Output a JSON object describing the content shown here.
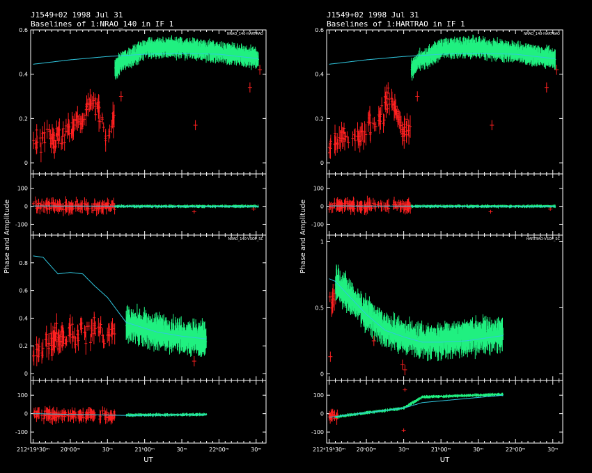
{
  "colors": {
    "background": "#000000",
    "frame": "#ffffff",
    "model": "#30c8e0",
    "flagged": "#ff2020",
    "good": "#20f080"
  },
  "figure": {
    "xlabel": "UT",
    "ylabel": "Phase and Amplitude"
  },
  "x_ticks": [
    {
      "v": 0,
      "label": "212ᵈ"
    },
    {
      "v": 30,
      "label": "20ʰ00ᵐ"
    },
    {
      "v": 60,
      "label": "30ᵐ"
    },
    {
      "v": 90,
      "label": "21ʰ00ᵐ"
    },
    {
      "v": 120,
      "label": "30ᵐ"
    },
    {
      "v": 150,
      "label": "22ʰ00ᵐ"
    },
    {
      "v": 180,
      "label": "30ᵐ"
    }
  ],
  "x_tick_start_prefix": "212ᵈ19ʰ30ᵐ",
  "chart_data": [
    {
      "type": "scatter",
      "title_line1": "J1549+02  1998 Jul 31",
      "title_line2": "Baselines of 1:NRAO_140 in IF 1",
      "xlabel": "UT",
      "ylabel": "Phase and Amplitude",
      "xlim_minutes_from_19h30": [
        -2,
        188
      ],
      "panels": [
        {
          "label": "NRAO_140-HARTRAO",
          "quantity": "amplitude",
          "ylim": [
            -0.05,
            0.6
          ],
          "yticks": [
            0,
            0.2,
            0.4,
            0.6
          ],
          "ytick_labels": [
            "0",
            "0.2",
            "0.4",
            "0.6"
          ],
          "flagged_range": [
            0,
            66
          ],
          "good_range": [
            66,
            182
          ],
          "model": [
            [
              0,
              0.445
            ],
            [
              30,
              0.465
            ],
            [
              60,
              0.48
            ],
            [
              90,
              0.49
            ],
            [
              120,
              0.495
            ],
            [
              150,
              0.49
            ],
            [
              182,
              0.47
            ]
          ],
          "good_level": [
            [
              66,
              0.42
            ],
            [
              72,
              0.46
            ],
            [
              80,
              0.48
            ],
            [
              92,
              0.52
            ],
            [
              120,
              0.52
            ],
            [
              150,
              0.5
            ],
            [
              182,
              0.47
            ]
          ],
          "flagged_level": [
            [
              0,
              0.08
            ],
            [
              10,
              0.12
            ],
            [
              20,
              0.1
            ],
            [
              30,
              0.14
            ],
            [
              40,
              0.2
            ],
            [
              48,
              0.3
            ],
            [
              55,
              0.22
            ],
            [
              60,
              0.12
            ],
            [
              66,
              0.2
            ]
          ],
          "outliers": [
            [
              71,
              0.3
            ],
            [
              131,
              0.17
            ],
            [
              175,
              0.34
            ],
            [
              183,
              0.42
            ]
          ]
        },
        {
          "label": "",
          "quantity": "phase",
          "ylim": [
            -160,
            180
          ],
          "yticks": [
            -100,
            0,
            100
          ],
          "ytick_labels": [
            "-100",
            "0",
            "100"
          ],
          "flagged_range": [
            0,
            66
          ],
          "good_range": [
            66,
            182
          ],
          "model": [
            [
              0,
              2
            ],
            [
              60,
              1
            ],
            [
              120,
              0
            ],
            [
              182,
              0
            ]
          ],
          "good_level": [
            [
              66,
              0
            ],
            [
              182,
              0
            ]
          ],
          "flagged_level": [
            [
              0,
              0
            ],
            [
              66,
              0
            ]
          ],
          "outliers": [
            [
              130,
              -30
            ],
            [
              178,
              -15
            ]
          ]
        },
        {
          "label": "NRAO_140-VSOP_SC",
          "quantity": "amplitude",
          "ylim": [
            -0.05,
            1.0
          ],
          "yticks": [
            0,
            0.2,
            0.4,
            0.6,
            0.8
          ],
          "ytick_labels": [
            "0",
            "0.2",
            "0.4",
            "0.6",
            "0.8"
          ],
          "flagged_range": [
            0,
            66
          ],
          "good_range": [
            75,
            140
          ],
          "model": [
            [
              0,
              0.85
            ],
            [
              8,
              0.84
            ],
            [
              20,
              0.72
            ],
            [
              30,
              0.73
            ],
            [
              40,
              0.72
            ],
            [
              50,
              0.63
            ],
            [
              60,
              0.55
            ],
            [
              75,
              0.37
            ],
            [
              100,
              0.3
            ],
            [
              120,
              0.27
            ],
            [
              140,
              0.25
            ]
          ],
          "good_level": [
            [
              75,
              0.36
            ],
            [
              100,
              0.3
            ],
            [
              120,
              0.27
            ],
            [
              140,
              0.25
            ]
          ],
          "flagged_level": [
            [
              0,
              0.15
            ],
            [
              10,
              0.2
            ],
            [
              20,
              0.25
            ],
            [
              30,
              0.28
            ],
            [
              40,
              0.3
            ],
            [
              50,
              0.32
            ],
            [
              60,
              0.25
            ],
            [
              66,
              0.3
            ]
          ],
          "outliers": [
            [
              130,
              0.09
            ]
          ]
        },
        {
          "label": "",
          "quantity": "phase",
          "ylim": [
            -160,
            180
          ],
          "yticks": [
            -100,
            0,
            100
          ],
          "ytick_labels": [
            "-100",
            "0",
            "100"
          ],
          "flagged_range": [
            0,
            66
          ],
          "good_range": [
            75,
            140
          ],
          "model": [
            [
              0,
              0
            ],
            [
              60,
              -8
            ],
            [
              80,
              -10
            ],
            [
              140,
              -5
            ]
          ],
          "good_level": [
            [
              75,
              -8
            ],
            [
              140,
              -5
            ]
          ],
          "flagged_level": [
            [
              0,
              -5
            ],
            [
              66,
              -15
            ]
          ],
          "outliers": []
        }
      ]
    },
    {
      "type": "scatter",
      "title_line1": "J1549+02  1998 Jul 31",
      "title_line2": "Baselines of 1:HARTRAO in IF 1",
      "xlabel": "UT",
      "ylabel": "Phase and Amplitude",
      "xlim_minutes_from_19h30": [
        -2,
        188
      ],
      "panels": [
        {
          "label": "NRAO_140-HARTRAO",
          "quantity": "amplitude",
          "ylim": [
            -0.05,
            0.6
          ],
          "yticks": [
            0,
            0.2,
            0.4,
            0.6
          ],
          "ytick_labels": [
            "0",
            "0.2",
            "0.4",
            "0.6"
          ],
          "flagged_range": [
            0,
            66
          ],
          "good_range": [
            66,
            182
          ],
          "model": [
            [
              0,
              0.445
            ],
            [
              30,
              0.465
            ],
            [
              60,
              0.48
            ],
            [
              90,
              0.49
            ],
            [
              120,
              0.495
            ],
            [
              150,
              0.49
            ],
            [
              182,
              0.47
            ]
          ],
          "good_level": [
            [
              66,
              0.42
            ],
            [
              72,
              0.46
            ],
            [
              80,
              0.48
            ],
            [
              92,
              0.52
            ],
            [
              120,
              0.52
            ],
            [
              150,
              0.5
            ],
            [
              182,
              0.47
            ]
          ],
          "flagged_level": [
            [
              0,
              0.08
            ],
            [
              10,
              0.12
            ],
            [
              20,
              0.1
            ],
            [
              30,
              0.14
            ],
            [
              40,
              0.2
            ],
            [
              48,
              0.3
            ],
            [
              55,
              0.22
            ],
            [
              60,
              0.12
            ],
            [
              66,
              0.2
            ]
          ],
          "outliers": [
            [
              71,
              0.3
            ],
            [
              131,
              0.17
            ],
            [
              175,
              0.34
            ],
            [
              183,
              0.42
            ]
          ]
        },
        {
          "label": "",
          "quantity": "phase",
          "ylim": [
            -160,
            180
          ],
          "yticks": [
            -100,
            0,
            100
          ],
          "ytick_labels": [
            "-100",
            "0",
            "100"
          ],
          "flagged_range": [
            0,
            66
          ],
          "good_range": [
            66,
            182
          ],
          "model": [
            [
              0,
              2
            ],
            [
              60,
              1
            ],
            [
              120,
              0
            ],
            [
              182,
              0
            ]
          ],
          "good_level": [
            [
              66,
              0
            ],
            [
              182,
              0
            ]
          ],
          "flagged_level": [
            [
              0,
              5
            ],
            [
              66,
              0
            ]
          ],
          "outliers": [
            [
              130,
              -30
            ],
            [
              178,
              -15
            ]
          ]
        },
        {
          "label": "HARTRAO-VSOP_SC",
          "quantity": "amplitude",
          "ylim": [
            -0.05,
            1.05
          ],
          "yticks": [
            0,
            0.5,
            1
          ],
          "ytick_labels": [
            "0",
            "0.5",
            "1"
          ],
          "flagged_range": [
            0,
            8
          ],
          "good_range": [
            5,
            140
          ],
          "model": [
            [
              0,
              0.72
            ],
            [
              5,
              0.7
            ],
            [
              15,
              0.6
            ],
            [
              30,
              0.45
            ],
            [
              45,
              0.33
            ],
            [
              60,
              0.28
            ],
            [
              75,
              0.24
            ],
            [
              90,
              0.24
            ],
            [
              110,
              0.25
            ],
            [
              125,
              0.27
            ],
            [
              140,
              0.29
            ]
          ],
          "good_level": [
            [
              5,
              0.7
            ],
            [
              15,
              0.6
            ],
            [
              30,
              0.45
            ],
            [
              45,
              0.33
            ],
            [
              60,
              0.28
            ],
            [
              70,
              0.25
            ],
            [
              90,
              0.25
            ],
            [
              110,
              0.28
            ],
            [
              140,
              0.3
            ]
          ],
          "flagged_level": [
            [
              0,
              0.5
            ],
            [
              8,
              0.7
            ]
          ],
          "outliers": [
            [
              1,
              0.13
            ],
            [
              59,
              0.07
            ],
            [
              61,
              0.03
            ],
            [
              36,
              0.25
            ]
          ]
        },
        {
          "label": "",
          "quantity": "phase",
          "ylim": [
            -160,
            180
          ],
          "yticks": [
            -100,
            0,
            100
          ],
          "ytick_labels": [
            "-100",
            "0",
            "100"
          ],
          "flagged_range": [
            0,
            8
          ],
          "good_range": [
            5,
            140
          ],
          "model": [
            [
              0,
              -20
            ],
            [
              30,
              5
            ],
            [
              60,
              30
            ],
            [
              75,
              60
            ],
            [
              140,
              100
            ]
          ],
          "good_level": [
            [
              5,
              -18
            ],
            [
              30,
              5
            ],
            [
              60,
              30
            ],
            [
              75,
              90
            ],
            [
              140,
              105
            ]
          ],
          "flagged_level": [
            [
              0,
              -10
            ],
            [
              8,
              -15
            ]
          ],
          "outliers": [
            [
              60,
              -90
            ],
            [
              61,
              130
            ]
          ]
        }
      ]
    }
  ]
}
